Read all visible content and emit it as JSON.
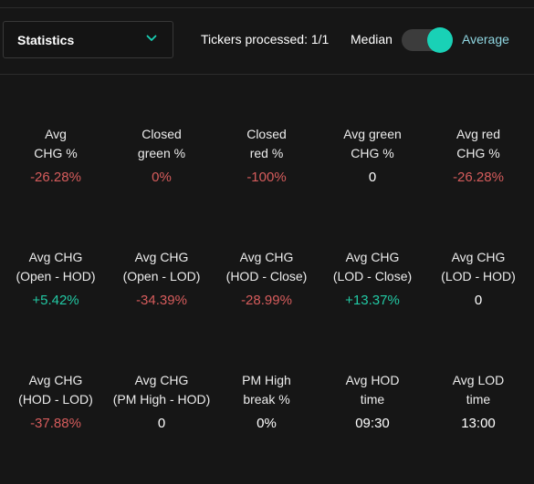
{
  "header": {
    "dropdown_label": "Statistics",
    "tickers_processed": "Tickers processed: 1/1",
    "toggle_left_label": "Median",
    "toggle_right_label": "Average",
    "toggle_state": "Average",
    "accent_color": "#19d1b6"
  },
  "colors": {
    "negative": "#d65c5c",
    "positive": "#22c9a4",
    "neutral": "#ffffff",
    "background": "#161616"
  },
  "stats": [
    [
      {
        "label": "Avg\nCHG %",
        "value": "-26.28%",
        "tone": "neg"
      },
      {
        "label": "Closed\ngreen %",
        "value": "0%",
        "tone": "neg"
      },
      {
        "label": "Closed\nred %",
        "value": "-100%",
        "tone": "neg"
      },
      {
        "label": "Avg green\nCHG %",
        "value": "0",
        "tone": "neu"
      },
      {
        "label": "Avg red\nCHG %",
        "value": "-26.28%",
        "tone": "neg"
      }
    ],
    [
      {
        "label": "Avg CHG\n(Open - HOD)",
        "value": "+5.42%",
        "tone": "pos"
      },
      {
        "label": "Avg CHG\n(Open - LOD)",
        "value": "-34.39%",
        "tone": "neg"
      },
      {
        "label": "Avg CHG\n(HOD - Close)",
        "value": "-28.99%",
        "tone": "neg"
      },
      {
        "label": "Avg CHG\n(LOD - Close)",
        "value": "+13.37%",
        "tone": "pos"
      },
      {
        "label": "Avg CHG\n(LOD - HOD)",
        "value": "0",
        "tone": "neu"
      }
    ],
    [
      {
        "label": "Avg CHG\n(HOD - LOD)",
        "value": "-37.88%",
        "tone": "neg"
      },
      {
        "label": "Avg CHG\n(PM High - HOD)",
        "value": "0",
        "tone": "neu"
      },
      {
        "label": "PM High\nbreak %",
        "value": "0%",
        "tone": "neu"
      },
      {
        "label": "Avg HOD\ntime",
        "value": "09:30",
        "tone": "neu"
      },
      {
        "label": "Avg LOD\ntime",
        "value": "13:00",
        "tone": "neu"
      }
    ]
  ]
}
